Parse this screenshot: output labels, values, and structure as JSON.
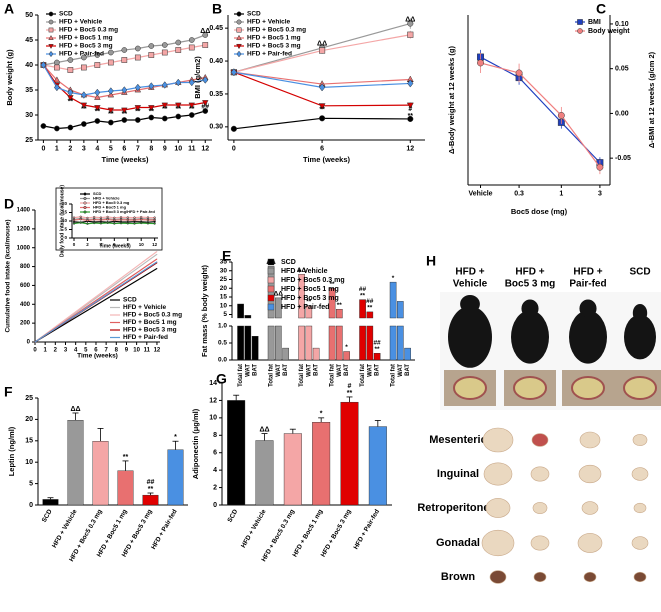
{
  "chart_data": [
    {
      "label": "A",
      "type": "line",
      "xlabel": "Time (weeks)",
      "ylabel": "Body weight (g)",
      "x": [
        0,
        1,
        2,
        3,
        4,
        5,
        6,
        7,
        8,
        9,
        10,
        11,
        12
      ],
      "xlim": [
        -0.4,
        12.5
      ],
      "xticks": [
        0,
        1,
        2,
        3,
        4,
        5,
        6,
        7,
        8,
        9,
        10,
        11,
        12
      ],
      "ylim": [
        25,
        50
      ],
      "yticks": [
        25,
        30,
        35,
        40,
        45,
        50
      ],
      "legend": "upper left",
      "series": [
        {
          "name": "SCD",
          "color": "#000000",
          "marker": "circle",
          "values": [
            27.8,
            27.3,
            27.5,
            28.2,
            28.8,
            28.5,
            29,
            29,
            29.5,
            29.3,
            29.7,
            30,
            30.8
          ]
        },
        {
          "name": "HFD + Vehicle",
          "color": "#999999",
          "marker": "circle",
          "values": [
            40,
            40.5,
            41,
            41.5,
            42,
            42.5,
            43,
            43.3,
            43.8,
            44,
            44.5,
            45,
            46
          ],
          "annotations": [
            null,
            null,
            null,
            null,
            null,
            null,
            null,
            null,
            null,
            null,
            null,
            null,
            [
              "ΔΔ"
            ]
          ]
        },
        {
          "name": "HFD + Boc5 0.3 mg",
          "color": "#f4a6a6",
          "marker": "square",
          "values": [
            40,
            39.5,
            39,
            39.5,
            40,
            40.5,
            41,
            41.5,
            42,
            42.5,
            43,
            43.5,
            44
          ]
        },
        {
          "name": "HFD + Boc5 1 mg",
          "color": "#e87070",
          "marker": "triangle-up",
          "values": [
            40,
            37,
            35,
            34,
            33.5,
            34,
            34.5,
            35,
            35.5,
            36,
            36.5,
            37,
            37.5
          ],
          "annotations": [
            null,
            null,
            [
              "**"
            ],
            null,
            null,
            null,
            null,
            null,
            null,
            null,
            null,
            null,
            [
              "**"
            ]
          ]
        },
        {
          "name": "HFD + Boc5 3 mg",
          "color": "#d40000",
          "marker": "triangle-down",
          "values": [
            40,
            36,
            33.5,
            32,
            31.5,
            31,
            31,
            31.5,
            31.5,
            32,
            32,
            32,
            32.5
          ],
          "annotations": [
            null,
            [
              "*"
            ],
            [
              "**"
            ],
            [
              "**"
            ],
            [
              "**"
            ],
            [
              "**"
            ],
            [
              "**"
            ],
            [
              "**"
            ],
            [
              "**"
            ],
            [
              "**"
            ],
            [
              "**"
            ],
            [
              "**"
            ],
            [
              "##"
            ]
          ]
        },
        {
          "name": "HFD + Pair-fed",
          "color": "#4a90e2",
          "marker": "diamond",
          "values": [
            40,
            35.5,
            34.5,
            34,
            34.5,
            34.8,
            35,
            35.5,
            35.8,
            36,
            36.5,
            36.5,
            37
          ]
        }
      ]
    },
    {
      "label": "B",
      "type": "line",
      "xlabel": "Time (weeks)",
      "ylabel": "BMI (g/cm2)",
      "x": [
        0,
        6,
        12
      ],
      "xlim": [
        -0.4,
        13
      ],
      "xticks": [
        0,
        6,
        12
      ],
      "ylim": [
        0.28,
        0.47
      ],
      "yticks": [
        {
          "value": 0.3,
          "label": "0.30"
        },
        0.35,
        {
          "value": 0.4,
          "label": "0.40"
        },
        0.45
      ],
      "legend": "upper left",
      "series": [
        {
          "name": "SCD",
          "color": "#000000",
          "marker": "circle",
          "values": [
            0.297,
            0.313,
            0.312
          ],
          "errors": [
            0.002,
            0.003,
            0.003
          ]
        },
        {
          "name": "HFD + Vehicle",
          "color": "#999999",
          "marker": "circle",
          "values": [
            0.383,
            0.42,
            0.457
          ],
          "errors": [
            0.004,
            0.006,
            0.008
          ],
          "annotations": [
            null,
            [
              "ΔΔ"
            ],
            [
              "ΔΔ"
            ]
          ]
        },
        {
          "name": "HFD + Boc5 0.3 mg",
          "color": "#f4a6a6",
          "marker": "square",
          "values": [
            0.383,
            0.416,
            0.44
          ],
          "errors": [
            0.004,
            0.005,
            0.006
          ]
        },
        {
          "name": "HFD + Boc5 1 mg",
          "color": "#e87070",
          "marker": "triangle-up",
          "values": [
            0.383,
            0.365,
            0.372
          ],
          "errors": [
            0.004,
            0.005,
            0.005
          ],
          "annotations": [
            null,
            [
              "**"
            ],
            [
              "**"
            ]
          ]
        },
        {
          "name": "HFD + Boc5 3 mg",
          "color": "#d40000",
          "marker": "triangle-down",
          "values": [
            0.383,
            0.332,
            0.333
          ],
          "errors": [
            0.004,
            0.003,
            0.004
          ],
          "annotations": [
            null,
            [
              "**"
            ],
            [
              "#",
              "**"
            ]
          ]
        },
        {
          "name": "HFD + Pair-fed",
          "color": "#4a90e2",
          "marker": "diamond",
          "values": [
            0.383,
            0.36,
            0.366
          ],
          "errors": [
            0.004,
            0.004,
            0.005
          ]
        }
      ]
    },
    {
      "label": "C",
      "type": "line",
      "xscale": "log",
      "xlabel": "Boc5 dose (mg)",
      "ylabel": "Δ-Body weight at 12 weeks (g)",
      "y2label": "Δ-BMI at 12 weeks (g/cm 2)",
      "x": [
        0.1,
        0.3,
        1,
        3
      ],
      "xlim": [
        0.07,
        4
      ],
      "xticks": [
        {
          "value": 0.1,
          "label": "Vehicle"
        },
        0.3,
        1,
        3
      ],
      "ylim": [
        -10,
        12
      ],
      "y2lim": [
        -0.08,
        0.11
      ],
      "y2ticks": [
        -0.05,
        {
          "value": 0,
          "label": "0.00"
        },
        0.05,
        {
          "value": 0.1,
          "label": "0.10"
        }
      ],
      "legend": "upper right",
      "series": [
        {
          "name": "BMI",
          "color": "#1f3fbf",
          "marker": "square",
          "axis": "y2",
          "values": [
            0.063,
            0.04,
            -0.01,
            -0.055
          ],
          "errors": [
            0.008,
            0.008,
            0.007,
            0.006
          ]
        },
        {
          "name": "Body weight",
          "color": "#f08080",
          "marker": "circle",
          "values": [
            5.8,
            4.5,
            -1,
            -7.7
          ],
          "errors": [
            1.3,
            1.2,
            1.1,
            0.9
          ]
        }
      ]
    },
    {
      "label": "D",
      "type": "line",
      "xlabel": "Time (weeks)",
      "ylabel": "Cumulative food intake (kcal/mouse)",
      "x": [
        0,
        1,
        2,
        3,
        4,
        5,
        6,
        7,
        8,
        9,
        10,
        11,
        12
      ],
      "xlim": [
        0,
        12.3
      ],
      "xticks": [
        0,
        1,
        2,
        3,
        4,
        5,
        6,
        7,
        8,
        9,
        10,
        11,
        12
      ],
      "ylim": [
        0,
        1400
      ],
      "yticks": [
        0,
        200,
        400,
        600,
        800,
        1000,
        1200,
        1400
      ],
      "legend": "lower right",
      "series": [
        {
          "name": "SCD",
          "color": "#000000",
          "values": [
            0,
            65,
            130,
            195,
            260,
            325,
            390,
            455,
            520,
            585,
            650,
            715,
            780
          ]
        },
        {
          "name": "HFD + Vehicle",
          "color": "#bbbbbb",
          "values": [
            0,
            78,
            155,
            233,
            310,
            388,
            465,
            543,
            620,
            698,
            775,
            853,
            930
          ]
        },
        {
          "name": "HFD + Boc5 0.3 mg",
          "color": "#f4b6b6",
          "values": [
            0,
            80,
            160,
            240,
            320,
            400,
            480,
            560,
            640,
            720,
            800,
            880,
            960
          ]
        },
        {
          "name": "HFD + Boc5 1 mg",
          "color": "#e06060",
          "values": [
            0,
            73,
            147,
            220,
            293,
            367,
            440,
            513,
            587,
            660,
            733,
            807,
            880
          ]
        },
        {
          "name": "HFD + Boc5 3 mg",
          "color": "#b00000",
          "values": [
            0,
            70,
            140,
            210,
            280,
            350,
            420,
            490,
            560,
            630,
            700,
            770,
            840
          ]
        },
        {
          "name": "HFD + Pair-fed",
          "color": "#5b9bd5",
          "values": [
            0,
            71,
            142,
            213,
            283,
            354,
            425,
            496,
            567,
            638,
            708,
            779,
            850
          ]
        }
      ]
    },
    {
      "type": "line",
      "xlabel": "Time (weeks)",
      "ylabel": "Daily food intake (kcal/mouse)",
      "x": [
        0,
        1,
        2,
        3,
        4,
        5,
        6,
        7,
        8,
        9,
        10,
        11,
        12
      ],
      "xlim": [
        -0.3,
        12.5
      ],
      "xticks": [
        0,
        2,
        4,
        6,
        8,
        10,
        12
      ],
      "ylim": [
        0,
        20
      ],
      "yticks": [
        0,
        5,
        10,
        15,
        20
      ],
      "legend": "upper left",
      "series": [
        {
          "name": "SCD",
          "color": "#000000",
          "marker": "circle",
          "values": [
            9.5,
            9.2,
            9.8,
            9.4,
            9.6,
            9.3,
            9.7,
            9.5,
            9.4,
            9.6,
            9.5,
            9.3,
            9.6
          ]
        },
        {
          "name": "HFD + Vehicle",
          "color": "#999999",
          "marker": "circle",
          "values": [
            11,
            11.5,
            10.8,
            11.2,
            11,
            11.4,
            10.9,
            11.3,
            11.1,
            11,
            11.4,
            11.2,
            11
          ]
        },
        {
          "name": "HFD + Boc5 0.3 mg",
          "color": "#f4a6a6",
          "marker": "circle",
          "values": [
            12,
            12.5,
            11.8,
            12.3,
            12,
            12.4,
            11.9,
            12.2,
            12.1,
            12,
            12.3,
            12.1,
            12
          ]
        },
        {
          "name": "HFD + Boc5 1 mg",
          "color": "#e87070",
          "marker": "circle",
          "values": [
            10.5,
            11,
            10.3,
            10.8,
            10.6,
            10.9,
            10.4,
            10.7,
            10.6,
            10.5,
            10.8,
            10.6,
            10.5
          ]
        },
        {
          "name": "HFD + Boc5 3 mg/HFD + Pair-fed",
          "color": "#2ca02c",
          "marker": "circle",
          "values": [
            8.5,
            9,
            8.4,
            8.8,
            8.6,
            8.9,
            8.5,
            8.7,
            8.6,
            8.5,
            8.8,
            8.6,
            8.5
          ]
        }
      ]
    },
    {
      "label": "E",
      "type": "broken-bar",
      "ylabel": "Fat mass (% body weight)",
      "subcategories": [
        "Total fat",
        "WAT",
        "BAT"
      ],
      "ylim_upper": [
        3,
        35
      ],
      "yticks_upper": [
        5,
        10,
        15,
        20,
        25,
        30,
        35
      ],
      "ylim_lower": [
        0,
        1
      ],
      "yticks_lower": [
        {
          "value": 0,
          "label": "0.0"
        },
        0.5,
        {
          "value": 1,
          "label": "1.0"
        }
      ],
      "legend": "upper left",
      "series": [
        {
          "name": "SCD",
          "color": "#000000",
          "values": [
            11,
            4.5,
            0.7
          ]
        },
        {
          "name": "HFD + Vehicle",
          "color": "#999999",
          "values": [
            32.5,
            14.5,
            0.35
          ],
          "annotations": [
            [
              "ΔΔ"
            ],
            [
              "ΔΔ"
            ],
            null
          ]
        },
        {
          "name": "HFD + Boc5 0.3 mg",
          "color": "#f4a6a6",
          "values": [
            28,
            10,
            0.35
          ],
          "annotations": [
            [
              "ΔΔ"
            ],
            [
              "**"
            ],
            null
          ]
        },
        {
          "name": "HFD + Boc5 1 mg",
          "color": "#e87070",
          "values": [
            20,
            8,
            0.25
          ],
          "annotations": [
            [
              "**"
            ],
            [
              "**"
            ],
            [
              "*"
            ]
          ]
        },
        {
          "name": "HFD + Boc5 3 mg",
          "color": "#e00000",
          "values": [
            13.5,
            6.5,
            0.2
          ],
          "annotations": [
            [
              "##",
              "**"
            ],
            [
              "##",
              "**"
            ],
            [
              "##",
              "**"
            ]
          ]
        },
        {
          "name": "HFD + Pair-fed",
          "color": "#4a90e2",
          "values": [
            23.5,
            12.5,
            0.35
          ],
          "annotations": [
            [
              "*"
            ],
            null,
            null
          ]
        }
      ]
    },
    {
      "label": "F",
      "type": "bar",
      "ylabel": "Leptin (ng/ml)",
      "categories": [
        "SCD",
        "HFD + Vehicle",
        "HFD + Boc5 0.3 mg",
        "HFD + Boc5 1 mg",
        "HFD + Boc5 3 mg",
        "HFD + Pair-fed"
      ],
      "colors": [
        "#000000",
        "#999999",
        "#f4a6a6",
        "#e87070",
        "#e00000",
        "#4a90e2"
      ],
      "values": [
        1.3,
        19.8,
        14.9,
        8,
        2.3,
        12.9
      ],
      "errors": [
        0.4,
        1.7,
        3,
        2.3,
        0.5,
        2
      ],
      "annotations": [
        null,
        [
          "ΔΔ"
        ],
        null,
        [
          "**"
        ],
        [
          "##",
          "**"
        ],
        [
          "*"
        ]
      ],
      "ylim": [
        0,
        25
      ],
      "yticks": [
        0,
        5,
        10,
        15,
        20,
        25
      ]
    },
    {
      "label": "G",
      "type": "bar",
      "ylabel": "Adiponectin (μg/ml)",
      "categories": [
        "SCD",
        "HFD + Vehicle",
        "HFD + Boc5 0.3 mg",
        "HFD + Boc5 1 mg",
        "HFD + Boc5 3 mg",
        "HFD + Pair-fed"
      ],
      "colors": [
        "#000000",
        "#999999",
        "#f4a6a6",
        "#e87070",
        "#e00000",
        "#4a90e2"
      ],
      "values": [
        12,
        7.4,
        8.2,
        9.5,
        11.8,
        9
      ],
      "errors": [
        0.6,
        0.8,
        0.5,
        0.5,
        0.6,
        0.7
      ],
      "annotations": [
        null,
        [
          "ΔΔ"
        ],
        null,
        [
          "*"
        ],
        [
          "#",
          "**"
        ],
        null
      ],
      "ylim": [
        0,
        14
      ],
      "yticks": [
        0,
        2,
        4,
        6,
        8,
        10,
        12,
        14
      ]
    }
  ],
  "photos": {
    "label": "H",
    "columns": [
      [
        "HFD +",
        "Vehicle"
      ],
      [
        "HFD +",
        "Boc5 3 mg"
      ],
      [
        "HFD +",
        "Pair-fed"
      ],
      [
        "SCD"
      ]
    ],
    "tissues": [
      "Mesenteric",
      "Inguinal",
      "Retroperitoneal",
      "Gonadal",
      "Brown"
    ]
  }
}
